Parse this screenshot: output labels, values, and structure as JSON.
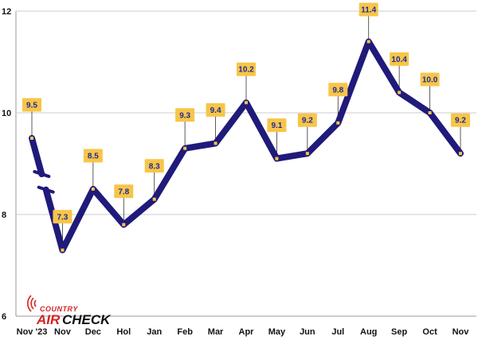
{
  "logo": {
    "top": "COUNTRY",
    "air": "AIR",
    "check": "CHECK"
  },
  "chart_data": {
    "type": "line",
    "title": "",
    "xlabel": "",
    "ylabel": "",
    "ylim": [
      6,
      12
    ],
    "yticks": [
      6,
      8,
      10,
      12
    ],
    "categories": [
      "Nov '23",
      "Nov",
      "Dec",
      "Hol",
      "Jan",
      "Feb",
      "Mar",
      "Apr",
      "May",
      "Jun",
      "Jul",
      "Aug",
      "Sep",
      "Oct",
      "Nov"
    ],
    "values": [
      9.5,
      7.3,
      8.5,
      7.8,
      8.3,
      9.3,
      9.4,
      10.2,
      9.1,
      9.2,
      9.8,
      11.4,
      10.4,
      10.0,
      9.2
    ],
    "labels": [
      "9.5",
      "7.3",
      "8.5",
      "7.8",
      "8.3",
      "9.3",
      "9.4",
      "10.2",
      "9.1",
      "9.2",
      "9.8",
      "11.4",
      "10.4",
      "10.0",
      "9.2"
    ],
    "axis_break_after_index": 0,
    "grid": true,
    "colors": {
      "line": "#201a7a",
      "label_box": "#f7c548",
      "marker": "#f7c548",
      "grid": "#cccccc",
      "label_text": "#1f2a9a"
    }
  }
}
